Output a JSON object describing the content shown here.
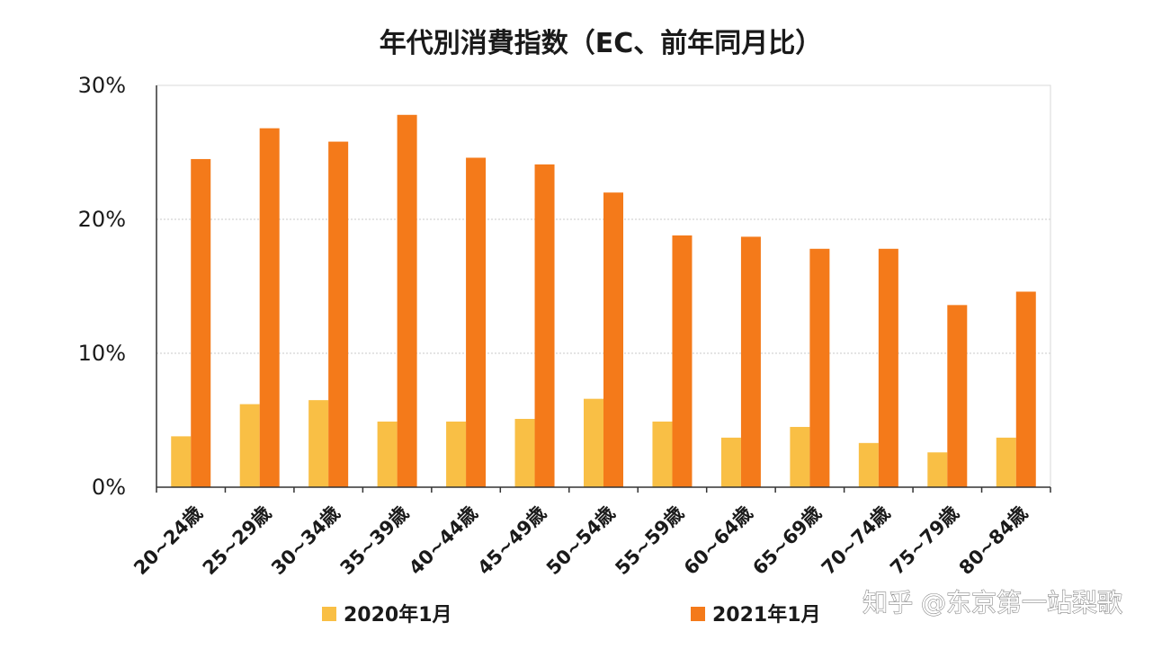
{
  "chart_data": {
    "type": "bar",
    "title": "年代別消費指数（EC、前年同月比）",
    "categories": [
      "20~24歳",
      "25~29歳",
      "30~34歳",
      "35~39歳",
      "40~44歳",
      "45~49歳",
      "50~54歳",
      "55~59歳",
      "60~64歳",
      "65~69歳",
      "70~74歳",
      "75~79歳",
      "80~84歳"
    ],
    "series": [
      {
        "name": "2020年1月",
        "color": "#F9BF45",
        "values": [
          3.8,
          6.2,
          6.5,
          4.9,
          4.9,
          5.1,
          6.6,
          4.9,
          3.7,
          4.5,
          3.3,
          2.6,
          3.7
        ]
      },
      {
        "name": "2021年1月",
        "color": "#F47A1A",
        "values": [
          24.5,
          26.8,
          25.8,
          27.8,
          24.6,
          24.1,
          22.0,
          18.8,
          18.7,
          17.8,
          17.8,
          13.6,
          14.6
        ]
      }
    ],
    "ylim": [
      0,
      30
    ],
    "yticks": [
      "0%",
      "10%",
      "20%",
      "30%"
    ],
    "grid": true,
    "legend": "bottom",
    "xlabel": "",
    "ylabel": ""
  },
  "watermark": "知乎 @东京第一站梨歌"
}
